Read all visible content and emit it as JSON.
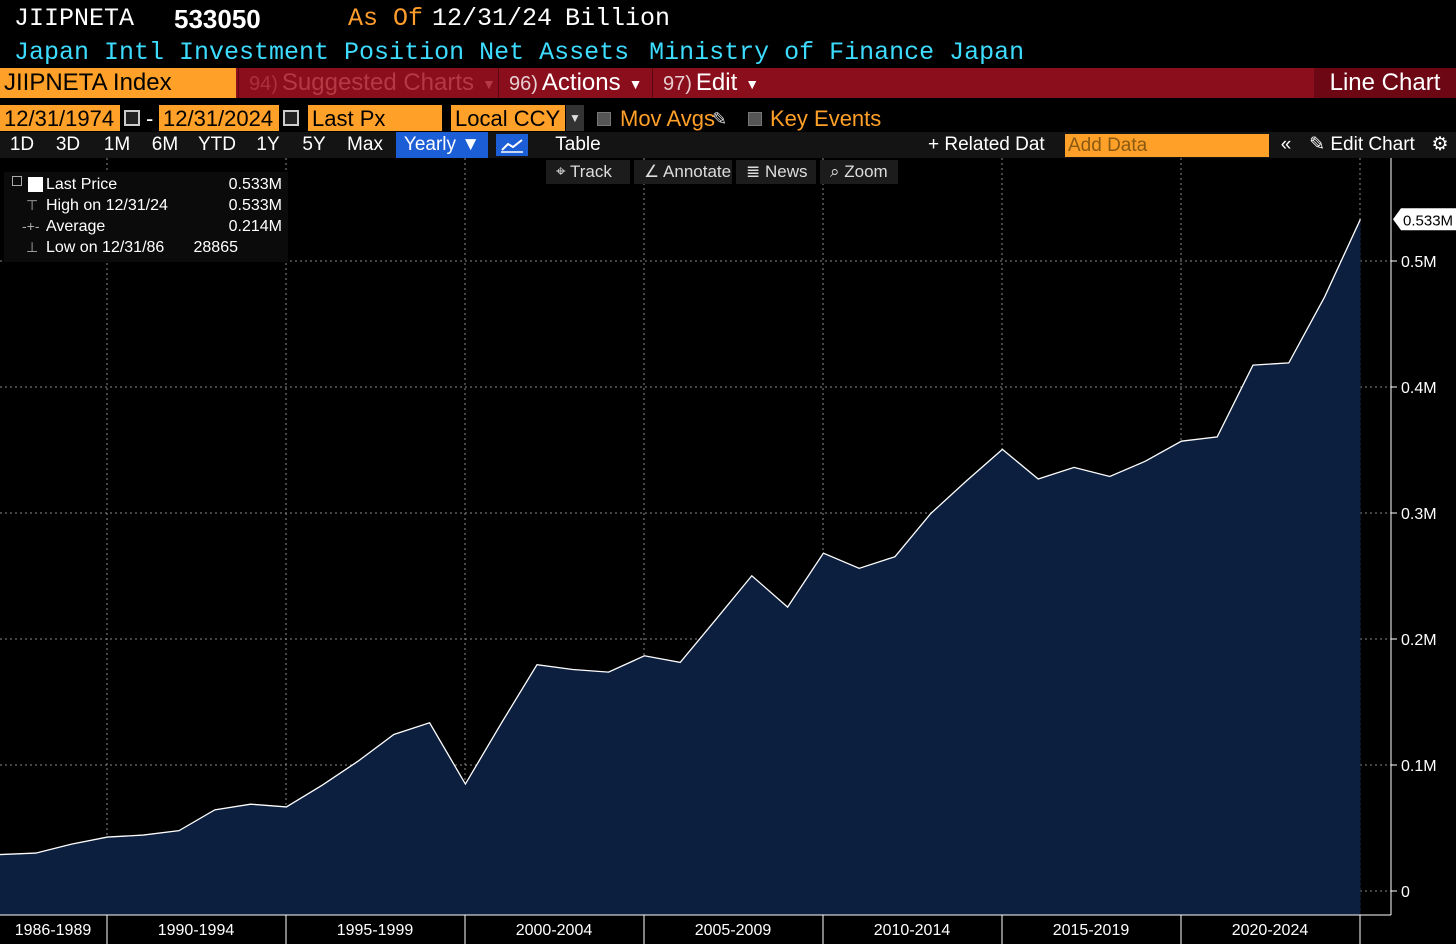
{
  "header": {
    "ticker": "JIIPNETA",
    "last_value": "533050",
    "as_of_label": "As Of",
    "as_of_date": "12/31/24",
    "units": "Billion",
    "description": "Japan Intl Investment Position Net Assets",
    "source": "Ministry of Finance Japan"
  },
  "command_bar": {
    "security": "JIIPNETA Index",
    "suggested": {
      "num": "94)",
      "label": "Suggested Charts"
    },
    "actions": {
      "num": "96)",
      "label": "Actions"
    },
    "edit": {
      "num": "97)",
      "label": "Edit"
    },
    "chart_type": "Line Chart"
  },
  "date_row": {
    "start_date": "12/31/1974",
    "end_date": "12/31/2024",
    "field": "Last Px",
    "currency": "Local CCY",
    "mov_avgs": "Mov Avgs",
    "key_events": "Key Events"
  },
  "toolbar": {
    "ranges": [
      "1D",
      "3D",
      "1M",
      "6M",
      "YTD",
      "1Y",
      "5Y",
      "Max"
    ],
    "period": "Yearly ▼",
    "table": "Table",
    "related": "+ Related Dat",
    "add_data_placeholder": "Add Data",
    "edit_chart": "Edit Chart"
  },
  "sub_toolbar": {
    "track": "Track",
    "annotate": "Annotate",
    "news": "News",
    "zoom": "Zoom"
  },
  "legend": {
    "last_label": "Last Price",
    "last_value": "0.533M",
    "high_label": "High on 12/31/24",
    "high_value": "0.533M",
    "avg_label": "Average",
    "avg_value": "0.214M",
    "low_label": "Low on 12/31/86",
    "low_value": "28865"
  },
  "colors": {
    "fill": "#0c1f3f",
    "line": "#ffffff",
    "accent": "#ffa028",
    "bar": "#8b0e1c"
  },
  "chart_data": {
    "type": "area",
    "x": [
      1986,
      1987,
      1988,
      1989,
      1990,
      1991,
      1992,
      1993,
      1994,
      1995,
      1996,
      1997,
      1998,
      1999,
      2000,
      2001,
      2002,
      2003,
      2004,
      2005,
      2006,
      2007,
      2008,
      2009,
      2010,
      2011,
      2012,
      2013,
      2014,
      2015,
      2016,
      2017,
      2018,
      2019,
      2020,
      2021,
      2022,
      2023,
      2024
    ],
    "values": [
      0.0289,
      0.0301,
      0.0372,
      0.0428,
      0.0444,
      0.0479,
      0.0644,
      0.0689,
      0.0667,
      0.084,
      0.103,
      0.1242,
      0.1335,
      0.0849,
      0.133,
      0.1796,
      0.1758,
      0.1737,
      0.1867,
      0.1814,
      0.2156,
      0.2502,
      0.2253,
      0.2681,
      0.2561,
      0.2653,
      0.2996,
      0.3256,
      0.3505,
      0.327,
      0.3362,
      0.329,
      0.3412,
      0.357,
      0.3604,
      0.4174,
      0.4191,
      0.4715,
      0.5331
    ],
    "ylim": [
      0,
      0.56
    ],
    "y_ticks": [
      0,
      0.1,
      0.2,
      0.3,
      0.4,
      0.5
    ],
    "y_tick_labels": [
      "0",
      "0.1M",
      "0.2M",
      "0.3M",
      "0.4M",
      "0.5M"
    ],
    "x_tick_labels": [
      "1986-1989",
      "1990-1994",
      "1995-1999",
      "2000-2004",
      "2005-2009",
      "2010-2014",
      "2015-2019",
      "2020-2024"
    ],
    "last_label": "0.533M",
    "grid": true
  }
}
